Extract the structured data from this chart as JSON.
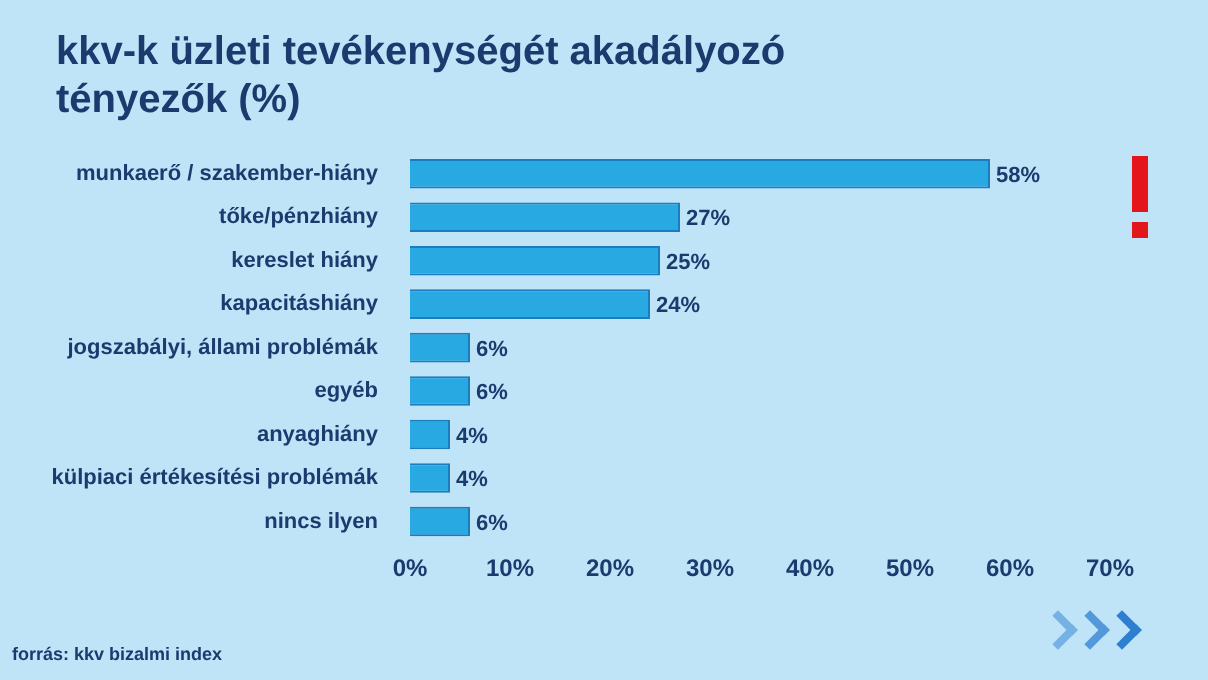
{
  "chart_data": {
    "type": "bar",
    "orientation": "horizontal",
    "title": "kkv-k üzleti tevékenységét akadályozó tényezők (%)",
    "categories": [
      "munkaerő / szakember-hiány",
      "tőke/pénzhiány",
      "kereslet hiány",
      "kapacitáshiány",
      "jogszabályi, állami problémák",
      "egyéb",
      "anyaghiány",
      "külpiaci értékesítési problémák",
      "nincs ilyen"
    ],
    "values": [
      58,
      27,
      25,
      24,
      6,
      6,
      4,
      4,
      6
    ],
    "value_labels": [
      "58%",
      "27%",
      "25%",
      "24%",
      "6%",
      "6%",
      "4%",
      "4%",
      "6%"
    ],
    "color": "#29a9e1",
    "xlim": [
      0,
      70
    ],
    "xticks": [
      {
        "value": 0,
        "label": "0%"
      },
      {
        "value": 10,
        "label": "10%"
      },
      {
        "value": 20,
        "label": "20%"
      },
      {
        "value": 30,
        "label": "30%"
      },
      {
        "value": 40,
        "label": "40%"
      },
      {
        "value": 50,
        "label": "50%"
      },
      {
        "value": 60,
        "label": "60%"
      },
      {
        "value": 70,
        "label": "70%"
      }
    ],
    "grid": false,
    "legend": false,
    "annotations": [
      "forrás: kkv bizalmi index"
    ]
  }
}
